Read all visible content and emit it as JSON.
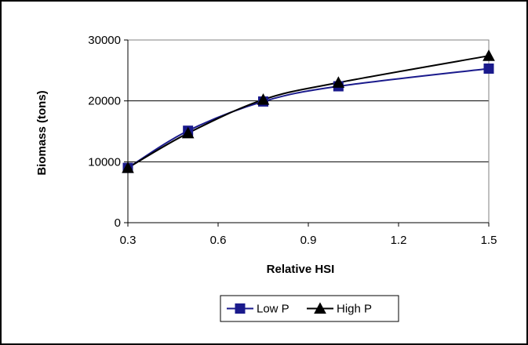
{
  "chart_data": {
    "type": "line",
    "title": "",
    "xlabel": "Relative HSI",
    "ylabel": "Biomass (tons)",
    "xlim": [
      0.3,
      1.5
    ],
    "ylim": [
      0,
      30000
    ],
    "x_ticks": [
      "0.3",
      "0.6",
      "0.9",
      "1.2",
      "1.5"
    ],
    "y_ticks": [
      "0",
      "10000",
      "20000",
      "30000"
    ],
    "grid": "horizontal",
    "legend_position": "bottom",
    "series": [
      {
        "name": "Low P",
        "color": "#1a1a8c",
        "marker": "square",
        "x": [
          0.3,
          0.5,
          0.75,
          1.0,
          1.5
        ],
        "y": [
          9000,
          15100,
          19900,
          22400,
          25300
        ]
      },
      {
        "name": "High P",
        "color": "#000000",
        "marker": "triangle",
        "x": [
          0.3,
          0.5,
          0.75,
          1.0,
          1.5
        ],
        "y": [
          9000,
          14700,
          20200,
          23000,
          27400
        ]
      }
    ]
  }
}
